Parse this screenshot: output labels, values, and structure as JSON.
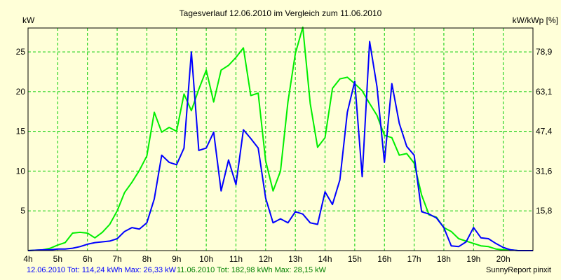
{
  "chart_data": {
    "type": "line",
    "title": "Tagesverlauf 12.06.2010 im Vergleich zum 11.06.2010",
    "ylabel_left": "kW",
    "ylabel_right": "kW/kWp [%]",
    "x_ticks": [
      "4h",
      "5h",
      "6h",
      "7h",
      "8h",
      "9h",
      "10h",
      "11h",
      "12h",
      "13h",
      "14h",
      "15h",
      "16h",
      "17h",
      "18h",
      "19h",
      "20h"
    ],
    "xlim": [
      4,
      21
    ],
    "ylim": [
      0,
      28
    ],
    "y_ticks": [
      5,
      10,
      15,
      20,
      25
    ],
    "y_right_ticks": [
      "15,8",
      "31,6",
      "47,4",
      "63,1",
      "78,9"
    ],
    "grid": true,
    "series": [
      {
        "name": "12.06.2010",
        "color": "#0000ff",
        "x": [
          4.0,
          4.5,
          4.75,
          5.0,
          5.25,
          5.5,
          5.75,
          6.0,
          6.25,
          6.5,
          6.75,
          7.0,
          7.25,
          7.5,
          7.75,
          8.0,
          8.25,
          8.5,
          8.75,
          9.0,
          9.25,
          9.5,
          9.75,
          10.0,
          10.25,
          10.5,
          10.75,
          11.0,
          11.25,
          11.5,
          11.75,
          12.0,
          12.25,
          12.5,
          12.75,
          13.0,
          13.25,
          13.5,
          13.75,
          14.0,
          14.25,
          14.5,
          14.75,
          15.0,
          15.25,
          15.5,
          15.75,
          16.0,
          16.25,
          16.5,
          16.75,
          17.0,
          17.25,
          17.5,
          17.75,
          18.0,
          18.25,
          18.5,
          18.75,
          19.0,
          19.25,
          19.5,
          19.75,
          20.0,
          20.25,
          20.5,
          21.0
        ],
        "values": [
          0,
          0.1,
          0.1,
          0.2,
          0.2,
          0.3,
          0.5,
          0.8,
          1.0,
          1.1,
          1.2,
          1.5,
          2.4,
          2.9,
          2.7,
          3.5,
          6.5,
          12.0,
          11.1,
          10.8,
          12.9,
          25.0,
          12.6,
          12.9,
          14.9,
          7.5,
          11.4,
          8.3,
          15.2,
          14.1,
          12.9,
          6.6,
          3.5,
          4.0,
          3.5,
          4.9,
          4.6,
          3.5,
          3.3,
          7.4,
          5.8,
          8.9,
          17.4,
          21.3,
          9.3,
          26.3,
          20.6,
          11.1,
          21.0,
          16.0,
          13.1,
          12.0,
          4.9,
          4.6,
          4.1,
          2.9,
          0.6,
          0.5,
          1.1,
          2.9,
          1.6,
          1.5,
          0.9,
          0.4,
          0.1,
          0,
          0
        ]
      },
      {
        "name": "11.06.2010",
        "color": "#00ee00",
        "x": [
          4.0,
          4.5,
          4.75,
          5.0,
          5.25,
          5.5,
          5.75,
          6.0,
          6.25,
          6.5,
          6.75,
          7.0,
          7.25,
          7.5,
          7.75,
          8.0,
          8.25,
          8.5,
          8.75,
          9.0,
          9.25,
          9.5,
          9.75,
          10.0,
          10.25,
          10.5,
          10.75,
          11.0,
          11.25,
          11.5,
          11.75,
          12.0,
          12.25,
          12.5,
          12.75,
          13.0,
          13.25,
          13.5,
          13.75,
          14.0,
          14.25,
          14.5,
          14.75,
          15.0,
          15.25,
          15.5,
          15.75,
          16.0,
          16.25,
          16.5,
          16.75,
          17.0,
          17.25,
          17.5,
          17.75,
          18.0,
          18.25,
          18.5,
          18.75,
          19.0,
          19.25,
          19.5,
          19.75,
          20.0,
          20.25,
          20.5,
          21.0
        ],
        "values": [
          0,
          0.1,
          0.3,
          0.7,
          1.0,
          2.2,
          2.3,
          2.2,
          1.6,
          2.3,
          3.3,
          5.0,
          7.3,
          8.6,
          10.1,
          11.9,
          17.4,
          14.9,
          15.5,
          15.0,
          19.7,
          17.6,
          20.3,
          22.7,
          18.7,
          22.7,
          23.3,
          24.3,
          25.5,
          19.5,
          19.8,
          11.3,
          7.5,
          10.0,
          18.7,
          24.8,
          28.1,
          18.5,
          13.0,
          14.2,
          20.4,
          21.6,
          21.8,
          21.0,
          20.1,
          18.5,
          17.0,
          14.5,
          14.2,
          12.0,
          12.2,
          11.0,
          7.0,
          4.5,
          4.2,
          2.9,
          2.4,
          1.5,
          1.2,
          0.9,
          0.6,
          0.5,
          0.2,
          0.1,
          0.1,
          0,
          0
        ]
      }
    ]
  },
  "legend": {
    "series_a": "12.06.2010 Tot: 114,24 kWh Max: 26,33 kW",
    "series_b": "11.06.2010 Tot: 182,98 kWh Max: 28,15 kW"
  },
  "credit": "SunnyReport pinxit"
}
